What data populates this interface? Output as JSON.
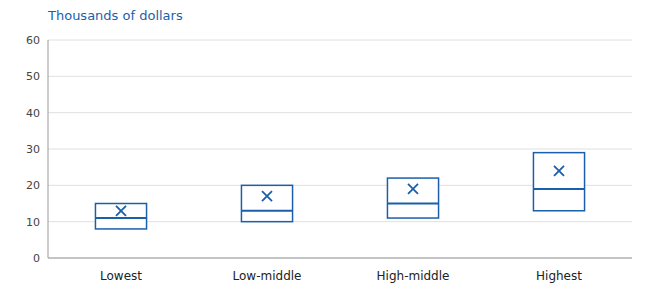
{
  "chart_data": {
    "type": "box",
    "ylabel": "Thousands of dollars",
    "categories": [
      "Lowest",
      "Low-middle",
      "High-middle",
      "Highest"
    ],
    "boxes": [
      {
        "q1": 8,
        "median": 11,
        "q3": 15,
        "mean": 13
      },
      {
        "q1": 10,
        "median": 13,
        "q3": 20,
        "mean": 17
      },
      {
        "q1": 11,
        "median": 15,
        "q3": 22,
        "mean": 19
      },
      {
        "q1": 13,
        "median": 19,
        "q3": 29,
        "mean": 24
      }
    ],
    "color": "#1b5faa",
    "ylim": [
      0,
      60
    ],
    "yticks": [
      0,
      10,
      20,
      30,
      40,
      50,
      60
    ],
    "grid": true
  }
}
